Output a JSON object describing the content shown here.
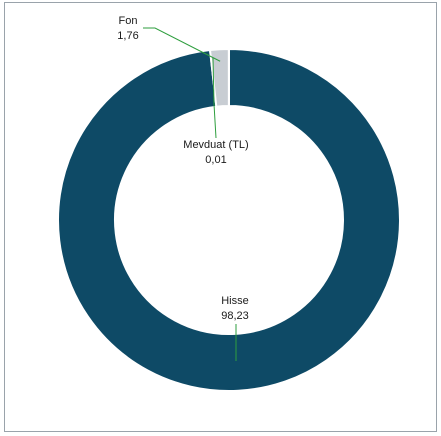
{
  "chart_data": {
    "type": "pie",
    "variant": "donut",
    "slices": [
      {
        "name": "Hisse",
        "value": 98.23,
        "value_label": "98,23",
        "color": "#0e4a66"
      },
      {
        "name": "Fon",
        "value": 1.76,
        "value_label": "1,76",
        "color": "#c8cdd3"
      },
      {
        "name": "Mevduat (TL)",
        "value": 0.01,
        "value_label": "0,01",
        "color": "#a9d08e"
      }
    ],
    "leader_line_color": "#2e9e3e"
  }
}
